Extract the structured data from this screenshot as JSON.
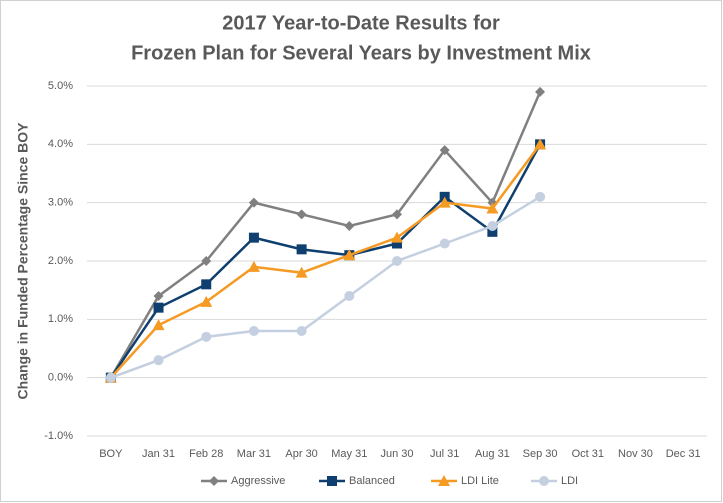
{
  "chart_data": {
    "type": "line",
    "title": [
      "2017 Year-to-Date Results for",
      "Frozen Plan for Several Years by Investment Mix"
    ],
    "y_label": "Change in Funded Percentage Since BOY",
    "categories": [
      "BOY",
      "Jan 31",
      "Feb 28",
      "Mar 31",
      "Apr 30",
      "May 31",
      "Jun 30",
      "Jul 31",
      "Aug 31",
      "Sep 30",
      "Oct 31",
      "Nov 30",
      "Dec 31"
    ],
    "series": [
      {
        "name": "Aggressive",
        "color": "#808080",
        "marker": "diamond",
        "values": [
          0,
          1.4,
          2.0,
          3.0,
          2.8,
          2.6,
          2.8,
          3.9,
          3.0,
          4.9,
          null,
          null,
          null
        ]
      },
      {
        "name": "Balanced",
        "color": "#0e3f6e",
        "marker": "square",
        "values": [
          0,
          1.2,
          1.6,
          2.4,
          2.2,
          2.1,
          2.3,
          3.1,
          2.5,
          4.0,
          null,
          null,
          null
        ]
      },
      {
        "name": "LDI Lite",
        "color": "#f59a23",
        "marker": "triangle",
        "values": [
          0,
          0.9,
          1.3,
          1.9,
          1.8,
          2.1,
          2.4,
          3.0,
          2.9,
          4.0,
          null,
          null,
          null
        ]
      },
      {
        "name": "LDI",
        "color": "#c4cfe0",
        "marker": "circle",
        "values": [
          0,
          0.3,
          0.7,
          0.8,
          0.8,
          1.4,
          2.0,
          2.3,
          2.6,
          3.1,
          null,
          null,
          null
        ]
      }
    ],
    "ylim": [
      -1,
      5
    ],
    "yticks": [
      {
        "value": -1,
        "label": "-1.0%"
      },
      {
        "value": 0,
        "label": "0.0%"
      },
      {
        "value": 1,
        "label": "1.0%"
      },
      {
        "value": 2,
        "label": "2.0%"
      },
      {
        "value": 3,
        "label": "3.0%"
      },
      {
        "value": 4,
        "label": "4.0%"
      },
      {
        "value": 5,
        "label": "5.0%"
      }
    ],
    "grid": true,
    "legend": "bottom"
  }
}
